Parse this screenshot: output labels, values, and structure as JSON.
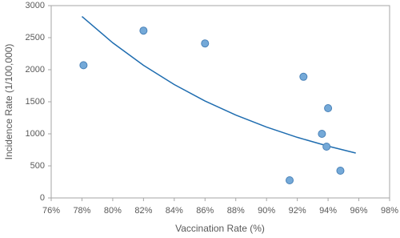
{
  "chart_data": {
    "type": "scatter",
    "x_label": "Vaccination Rate (%)",
    "y_label": "Incidence Rate (1/100,000)",
    "x": [
      78.1,
      82.0,
      86.0,
      92.4,
      94.0,
      93.6,
      93.9,
      91.5,
      94.8
    ],
    "values": [
      2070,
      2610,
      2410,
      1890,
      1400,
      1000,
      800,
      275,
      425
    ],
    "color": "#74a9d8",
    "edge_color": "#4a82b8",
    "trendline": {
      "x": [
        78,
        80,
        82,
        84,
        86,
        88,
        90,
        92,
        94,
        95.8
      ],
      "values": [
        2830,
        2420,
        2069,
        1769,
        1512,
        1293,
        1105,
        945,
        808,
        700
      ],
      "color": "#1f6db0"
    },
    "xlim": [
      76,
      98
    ],
    "xticks": [
      {
        "value": 76,
        "label": "76%"
      },
      {
        "value": 78,
        "label": "78%"
      },
      {
        "value": 80,
        "label": "80%"
      },
      {
        "value": 82,
        "label": "82%"
      },
      {
        "value": 84,
        "label": "84%"
      },
      {
        "value": 86,
        "label": "86%"
      },
      {
        "value": 88,
        "label": "88%"
      },
      {
        "value": 90,
        "label": "90%"
      },
      {
        "value": 92,
        "label": "92%"
      },
      {
        "value": 94,
        "label": "94%"
      },
      {
        "value": 96,
        "label": "96%"
      },
      {
        "value": 98,
        "label": "98%"
      }
    ],
    "ylim": [
      0,
      3000
    ],
    "yticks": [
      0,
      500,
      1000,
      1500,
      2000,
      2500,
      3000
    ],
    "grid": false
  }
}
